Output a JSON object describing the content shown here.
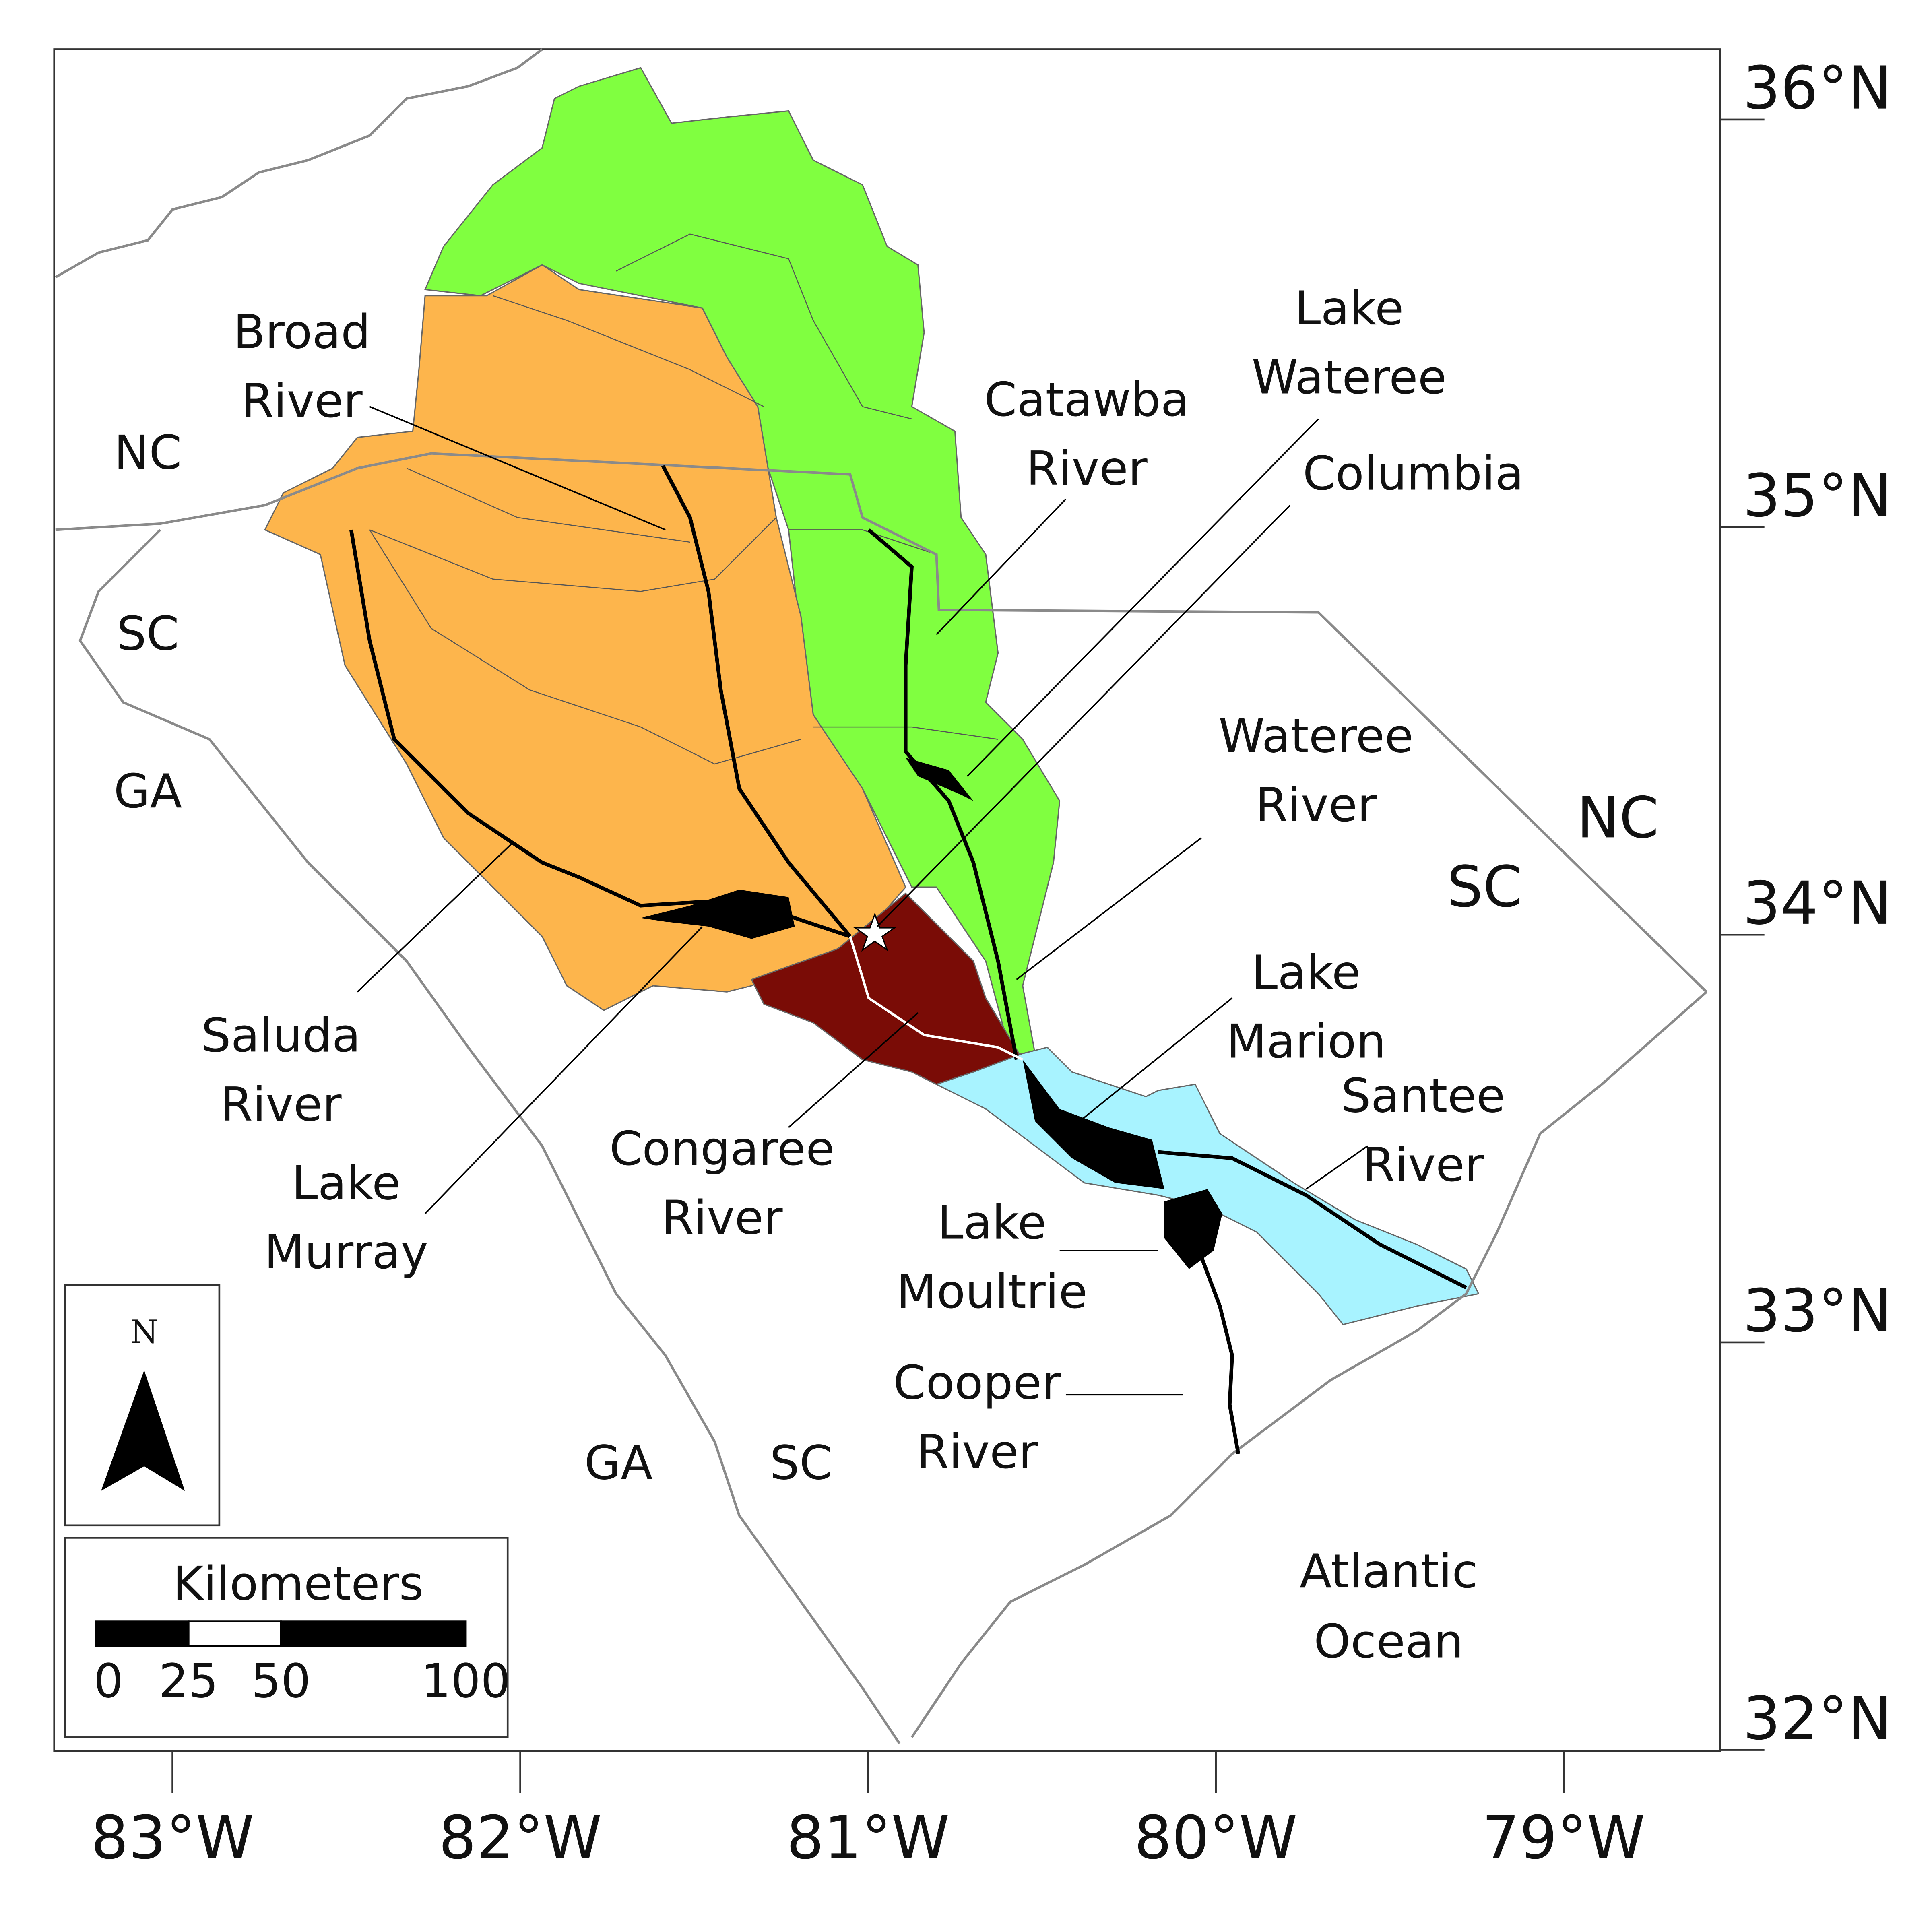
{
  "map": {
    "latitude_ticks": [
      {
        "value": 36,
        "label": "36°N"
      },
      {
        "value": 35,
        "label": "35°N"
      },
      {
        "value": 34,
        "label": "34°N"
      },
      {
        "value": 33,
        "label": "33°N"
      },
      {
        "value": 32,
        "label": "32°N"
      }
    ],
    "longitude_ticks": [
      {
        "value": 83,
        "label": "83°W"
      },
      {
        "value": 82,
        "label": "82°W"
      },
      {
        "value": 81,
        "label": "81°W"
      },
      {
        "value": 80,
        "label": "80°W"
      },
      {
        "value": 79,
        "label": "79°W"
      }
    ],
    "region_labels": [
      "NC",
      "SC",
      "GA",
      "NC",
      "SC",
      "GA",
      "SC"
    ],
    "ocean_label": [
      "Atlantic",
      "Ocean"
    ],
    "feature_labels": [
      [
        "Broad",
        "River"
      ],
      [
        "Catawba",
        "River"
      ],
      [
        "Lake",
        "Wateree"
      ],
      [
        "Columbia"
      ],
      [
        "Wateree",
        "River"
      ],
      [
        "Lake",
        "Marion"
      ],
      [
        "Santee",
        "River"
      ],
      [
        "Saluda",
        "River"
      ],
      [
        "Lake",
        "Murray"
      ],
      [
        "Congaree",
        "River"
      ],
      [
        "Lake",
        "Moultrie"
      ],
      [
        "Cooper",
        "River"
      ]
    ],
    "north_arrow": "N",
    "scale_bar": {
      "title": "Kilometers",
      "ticks": [
        0,
        25,
        50,
        100
      ]
    }
  }
}
